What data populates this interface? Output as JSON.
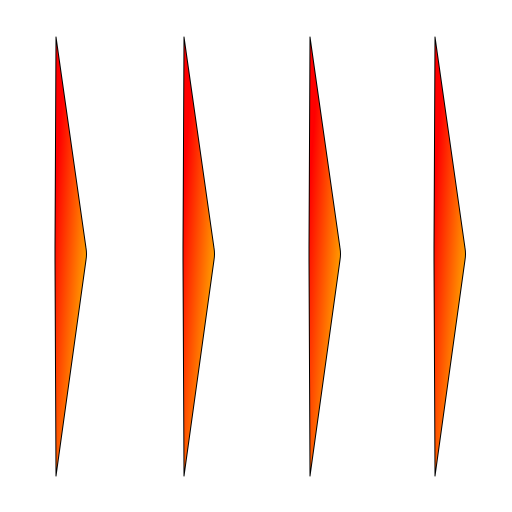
{
  "shapes": [
    {
      "name": "chevron-shape-1"
    },
    {
      "name": "chevron-shape-2"
    },
    {
      "name": "chevron-shape-3"
    },
    {
      "name": "chevron-shape-4"
    }
  ],
  "colors": {
    "background": "#ffffff",
    "gradient_top": "#ff0000",
    "gradient_bottom": "#ffc400",
    "outline": "#000000"
  }
}
